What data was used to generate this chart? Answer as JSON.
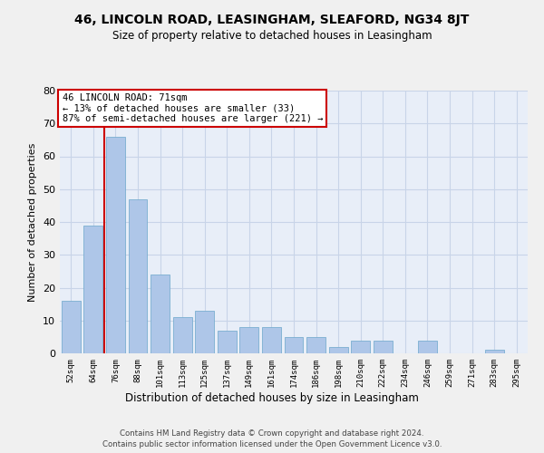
{
  "title1": "46, LINCOLN ROAD, LEASINGHAM, SLEAFORD, NG34 8JT",
  "title2": "Size of property relative to detached houses in Leasingham",
  "xlabel": "Distribution of detached houses by size in Leasingham",
  "ylabel": "Number of detached properties",
  "bar_labels": [
    "52sqm",
    "64sqm",
    "76sqm",
    "88sqm",
    "101sqm",
    "113sqm",
    "125sqm",
    "137sqm",
    "149sqm",
    "161sqm",
    "174sqm",
    "186sqm",
    "198sqm",
    "210sqm",
    "222sqm",
    "234sqm",
    "246sqm",
    "259sqm",
    "271sqm",
    "283sqm",
    "295sqm"
  ],
  "bar_values": [
    16,
    39,
    66,
    47,
    24,
    11,
    13,
    7,
    8,
    8,
    5,
    5,
    2,
    4,
    4,
    0,
    4,
    0,
    0,
    1,
    0
  ],
  "bar_color": "#aec6e8",
  "bar_edge_color": "#7aaed0",
  "vline_x": 1.5,
  "annotation_title": "46 LINCOLN ROAD: 71sqm",
  "annotation_line1": "← 13% of detached houses are smaller (33)",
  "annotation_line2": "87% of semi-detached houses are larger (221) →",
  "annotation_box_color": "#ffffff",
  "annotation_box_edge_color": "#cc0000",
  "vline_color": "#cc0000",
  "ylim": [
    0,
    80
  ],
  "yticks": [
    0,
    10,
    20,
    30,
    40,
    50,
    60,
    70,
    80
  ],
  "grid_color": "#c8d4e8",
  "background_color": "#e8eef8",
  "fig_background": "#f0f0f0",
  "footer1": "Contains HM Land Registry data © Crown copyright and database right 2024.",
  "footer2": "Contains public sector information licensed under the Open Government Licence v3.0."
}
